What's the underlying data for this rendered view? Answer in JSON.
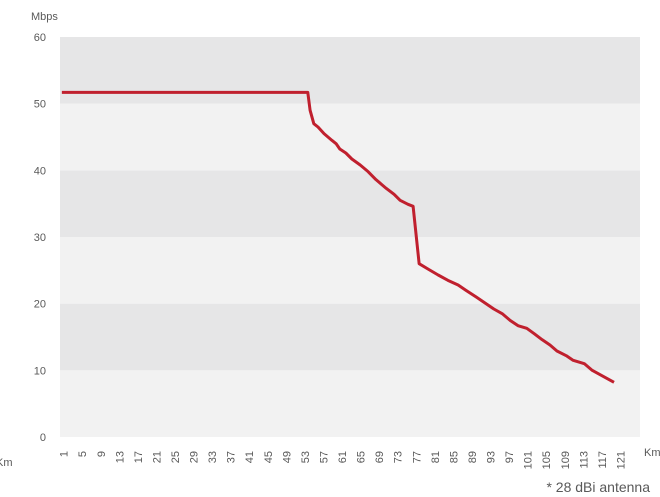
{
  "chart_data": {
    "type": "line",
    "y_label": "Mbps",
    "x_label": "Km",
    "x_label_left": "Km",
    "annotation": "* 28 dBi antenna",
    "xlim": [
      0,
      125
    ],
    "ylim": [
      0,
      60
    ],
    "yticks": [
      0,
      10,
      20,
      30,
      40,
      50,
      60
    ],
    "xticks": [
      1,
      5,
      9,
      13,
      17,
      21,
      25,
      29,
      33,
      37,
      41,
      45,
      49,
      53,
      57,
      61,
      65,
      69,
      73,
      77,
      81,
      85,
      89,
      93,
      97,
      101,
      105,
      109,
      113,
      117,
      121
    ],
    "band_colors": [
      "#f2f2f2",
      "#e6e6e7"
    ],
    "series": [
      {
        "color": "#c0202e",
        "x": [
          0.4,
          53.4,
          53.9,
          54.7,
          55.6,
          56.9,
          58.6,
          59.5,
          60.3,
          61.6,
          62.9,
          64.7,
          66.4,
          68.1,
          70.3,
          72.0,
          73.3,
          75.0,
          76.1,
          77.4,
          79.3,
          81.5,
          83.6,
          85.8,
          87.5,
          89.7,
          91.4,
          93.5,
          95.3,
          97.0,
          98.7,
          100.6,
          102.2,
          103.9,
          105.6,
          107.1,
          109.1,
          110.6,
          113.0,
          114.7,
          116.8,
          119.4
        ],
        "values": [
          51.7,
          51.7,
          49,
          47,
          46.5,
          45.5,
          44.5,
          44,
          43.2,
          42.6,
          41.7,
          40.8,
          39.8,
          38.6,
          37.3,
          36.4,
          35.5,
          34.9,
          34.6,
          26,
          25.2,
          24.3,
          23.5,
          22.8,
          22,
          21,
          20.2,
          19.2,
          18.5,
          17.5,
          16.7,
          16.3,
          15.5,
          14.6,
          13.8,
          12.9,
          12.2,
          11.5,
          11,
          10,
          9.2,
          8.2
        ]
      }
    ]
  }
}
